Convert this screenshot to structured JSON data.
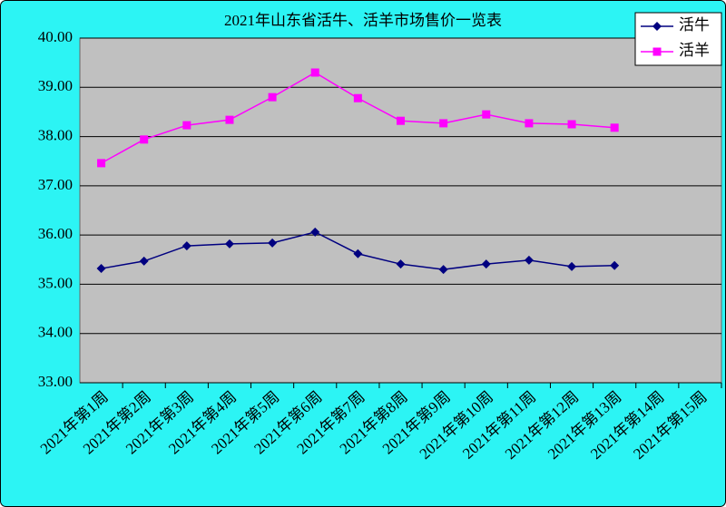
{
  "chart_data": {
    "type": "line",
    "title": "2021年山东省活牛、活羊市场售价一览表",
    "categories": [
      "2021年第1周",
      "2021年第2周",
      "2021年第3周",
      "2021年第4周",
      "2021年第5周",
      "2021年第6周",
      "2021年第7周",
      "2021年第8周",
      "2021年第9周",
      "2021年第10周",
      "2021年第11周",
      "2021年第12周",
      "2021年第13周",
      "2021年第14周",
      "2021年第15周"
    ],
    "series": [
      {
        "name": "活牛",
        "color": "#000080",
        "marker": "diamond",
        "values": [
          35.32,
          35.47,
          35.78,
          35.82,
          35.84,
          36.06,
          35.62,
          35.41,
          35.3,
          35.41,
          35.49,
          35.36,
          35.38,
          null,
          null
        ]
      },
      {
        "name": "活羊",
        "color": "#ff00ff",
        "marker": "square",
        "values": [
          37.46,
          37.94,
          38.23,
          38.34,
          38.8,
          39.3,
          38.78,
          38.32,
          38.27,
          38.45,
          38.27,
          38.25,
          38.18,
          null,
          null
        ]
      }
    ],
    "ylim": [
      33,
      40
    ],
    "yticks": [
      {
        "value": 33,
        "label": "33.00"
      },
      {
        "value": 34,
        "label": "34.00"
      },
      {
        "value": 35,
        "label": "35.00"
      },
      {
        "value": 36,
        "label": "36.00"
      },
      {
        "value": 37,
        "label": "37.00"
      },
      {
        "value": 38,
        "label": "38.00"
      },
      {
        "value": 39,
        "label": "39.00"
      },
      {
        "value": 40,
        "label": "40.00"
      }
    ],
    "grid": true,
    "legend": "top-right"
  }
}
